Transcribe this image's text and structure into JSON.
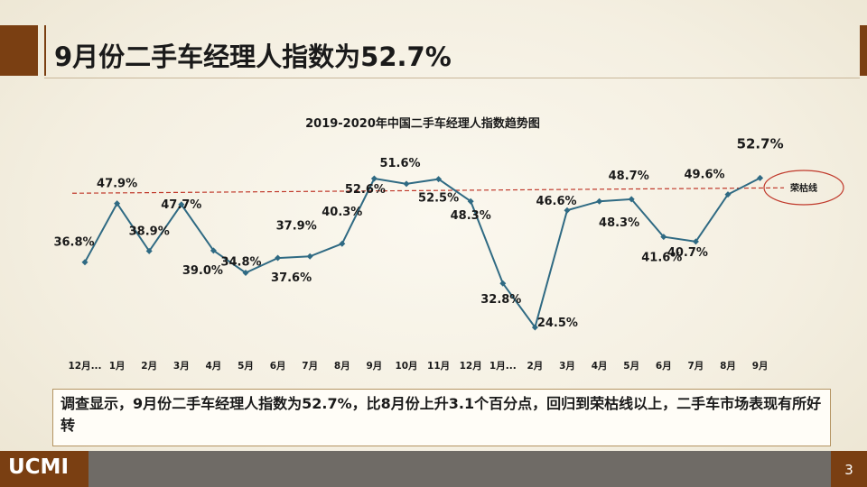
{
  "slide": {
    "title": "9月份二手车经理人指数为52.7%",
    "note": "调查显示，9月份二手车经理人指数为52.7%，比8月份上升3.1个百分点，回归到荣枯线以上，二手车市场表现有所好转",
    "logo": "UCMI",
    "page_number": "3"
  },
  "chart_data": {
    "type": "line",
    "title": "2019-2020年中国二手车经理人指数趋势图",
    "categories": [
      "12月...",
      "1月",
      "2月",
      "3月",
      "4月",
      "5月",
      "6月",
      "7月",
      "8月",
      "9月",
      "10月",
      "11月",
      "12月",
      "1月...",
      "2月",
      "3月",
      "4月",
      "5月",
      "6月",
      "7月",
      "8月",
      "9月"
    ],
    "series": [
      {
        "values": [
          36.8,
          47.9,
          38.9,
          47.7,
          39.0,
          34.8,
          37.6,
          37.9,
          40.3,
          52.6,
          51.6,
          52.5,
          48.3,
          32.8,
          24.5,
          46.6,
          48.3,
          48.7,
          41.6,
          40.7,
          49.6,
          52.7
        ]
      }
    ],
    "data_labels": [
      "36.8%",
      "47.9%",
      "38.9%",
      "47.7%",
      "39.0%",
      "34.8%",
      "37.6%",
      "37.9%",
      "40.3%",
      "52.6%",
      "51.6%",
      "52.5%",
      "48.3%",
      "32.8%",
      "24.5%",
      "46.6%",
      "48.3%",
      "48.7%",
      "41.6%",
      "40.7%",
      "49.6%",
      "52.7%"
    ],
    "reference_line": {
      "value": 50,
      "label": "荣枯线"
    },
    "line_color": "#2f6a83",
    "reference_color": "#c0392b",
    "grid": false,
    "legend": "none"
  }
}
